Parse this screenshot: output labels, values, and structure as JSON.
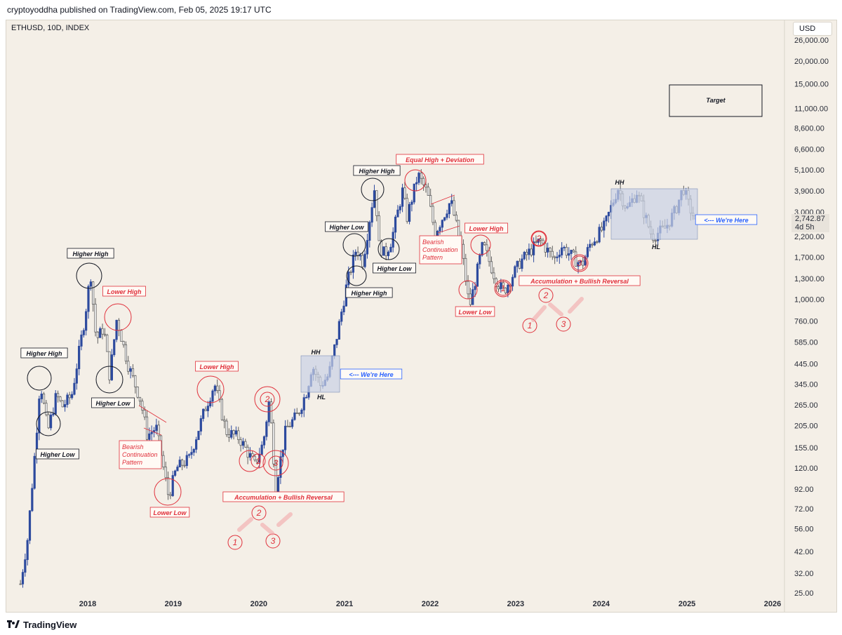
{
  "publisher_line": "cryptoyoddha published on TradingView.com, Feb 05, 2025 19:17 UTC",
  "symbol_title": "ETHUSD, 10D, INDEX",
  "currency_button": "USD",
  "brand": "TradingView",
  "last_price": "2,742.87",
  "countdown": "4d 5h",
  "colors": {
    "background": "#f4efe7",
    "candle_up": "#2d4a9e",
    "candle_down": "#5f5f5f",
    "annotation_red": "#e0303b",
    "annotation_black": "#131722",
    "zone_fill": "#c9d2e6",
    "callout_blue": "#2962ff"
  },
  "chart_data": {
    "type": "candlestick",
    "title": "ETHUSD, 10D, INDEX",
    "y_scale": "log",
    "y_ticks": [
      "26,000.00",
      "20,000.00",
      "15,000.00",
      "11,000.00",
      "8,600.00",
      "6,600.00",
      "5,100.00",
      "3,900.00",
      "3,000.00",
      "2,200.00",
      "1,700.00",
      "1,300.00",
      "1,000.00",
      "760.00",
      "585.00",
      "445.00",
      "345.00",
      "265.00",
      "205.00",
      "155.00",
      "120.00",
      "92.00",
      "72.00",
      "56.00",
      "42.00",
      "32.00",
      "25.00"
    ],
    "x_ticks": [
      "2018",
      "2019",
      "2020",
      "2021",
      "2022",
      "2023",
      "2024",
      "2025",
      "2026"
    ],
    "price_path": [
      {
        "date": "2017-03-20",
        "price": 28
      },
      {
        "date": "2017-04-20",
        "price": 50
      },
      {
        "date": "2017-05-25",
        "price": 170
      },
      {
        "date": "2017-06-12",
        "price": 360
      },
      {
        "date": "2017-07-15",
        "price": 190
      },
      {
        "date": "2017-08-20",
        "price": 300
      },
      {
        "date": "2017-09-15",
        "price": 260
      },
      {
        "date": "2017-10-25",
        "price": 300
      },
      {
        "date": "2017-12-20",
        "price": 800
      },
      {
        "date": "2018-01-13",
        "price": 1400
      },
      {
        "date": "2018-02-06",
        "price": 600
      },
      {
        "date": "2018-03-10",
        "price": 700
      },
      {
        "date": "2018-04-05",
        "price": 380
      },
      {
        "date": "2018-05-05",
        "price": 790
      },
      {
        "date": "2018-06-20",
        "price": 450
      },
      {
        "date": "2018-08-15",
        "price": 280
      },
      {
        "date": "2018-09-12",
        "price": 180
      },
      {
        "date": "2018-10-20",
        "price": 200
      },
      {
        "date": "2018-12-12",
        "price": 84
      },
      {
        "date": "2019-01-15",
        "price": 120
      },
      {
        "date": "2019-03-10",
        "price": 135
      },
      {
        "date": "2019-05-15",
        "price": 250
      },
      {
        "date": "2019-06-26",
        "price": 345
      },
      {
        "date": "2019-08-15",
        "price": 190
      },
      {
        "date": "2019-10-10",
        "price": 175
      },
      {
        "date": "2019-12-15",
        "price": 125
      },
      {
        "date": "2020-01-20",
        "price": 165
      },
      {
        "date": "2020-02-15",
        "price": 285
      },
      {
        "date": "2020-03-13",
        "price": 95
      },
      {
        "date": "2020-04-25",
        "price": 195
      },
      {
        "date": "2020-06-15",
        "price": 235
      },
      {
        "date": "2020-07-25",
        "price": 320
      },
      {
        "date": "2020-08-15",
        "price": 440
      },
      {
        "date": "2020-09-20",
        "price": 340
      },
      {
        "date": "2020-10-25",
        "price": 385
      },
      {
        "date": "2020-11-25",
        "price": 590
      },
      {
        "date": "2021-01-10",
        "price": 1200
      },
      {
        "date": "2021-02-20",
        "price": 1900
      },
      {
        "date": "2021-03-20",
        "price": 1600
      },
      {
        "date": "2021-05-12",
        "price": 4300
      },
      {
        "date": "2021-05-25",
        "price": 2000
      },
      {
        "date": "2021-06-22",
        "price": 1750
      },
      {
        "date": "2021-07-20",
        "price": 2100
      },
      {
        "date": "2021-09-05",
        "price": 3900
      },
      {
        "date": "2021-09-25",
        "price": 2800
      },
      {
        "date": "2021-11-10",
        "price": 4800
      },
      {
        "date": "2021-12-20",
        "price": 3800
      },
      {
        "date": "2022-01-22",
        "price": 2300
      },
      {
        "date": "2022-03-30",
        "price": 3450
      },
      {
        "date": "2022-05-15",
        "price": 1900
      },
      {
        "date": "2022-06-18",
        "price": 900
      },
      {
        "date": "2022-08-14",
        "price": 2000
      },
      {
        "date": "2022-10-10",
        "price": 1270
      },
      {
        "date": "2022-11-10",
        "price": 1100
      },
      {
        "date": "2023-01-20",
        "price": 1600
      },
      {
        "date": "2023-04-15",
        "price": 2100
      },
      {
        "date": "2023-06-15",
        "price": 1650
      },
      {
        "date": "2023-07-15",
        "price": 1950
      },
      {
        "date": "2023-10-10",
        "price": 1530
      },
      {
        "date": "2023-11-15",
        "price": 2000
      },
      {
        "date": "2024-01-15",
        "price": 2500
      },
      {
        "date": "2024-03-12",
        "price": 4050
      },
      {
        "date": "2024-04-20",
        "price": 3100
      },
      {
        "date": "2024-06-01",
        "price": 3850
      },
      {
        "date": "2024-08-05",
        "price": 2200
      },
      {
        "date": "2024-10-01",
        "price": 2450
      },
      {
        "date": "2024-11-15",
        "price": 3100
      },
      {
        "date": "2024-12-16",
        "price": 4100
      },
      {
        "date": "2025-01-10",
        "price": 3200
      },
      {
        "date": "2025-02-05",
        "price": 2742.87
      }
    ],
    "annotations": [
      {
        "text": "Higher High",
        "color": "black"
      },
      {
        "text": "Higher Low",
        "color": "black"
      },
      {
        "text": "Higher High",
        "color": "black"
      },
      {
        "text": "Higher Low",
        "color": "black"
      },
      {
        "text": "Lower High",
        "color": "red"
      },
      {
        "text": "Bearish Continuation Pattern",
        "color": "red"
      },
      {
        "text": "Lower Low",
        "color": "red"
      },
      {
        "text": "Lower High",
        "color": "red"
      },
      {
        "text": "Accumulation + Bullish Reversal",
        "color": "red"
      },
      {
        "text": "HH",
        "color": "black"
      },
      {
        "text": "HL",
        "color": "black"
      },
      {
        "text": "<--- We're Here",
        "color": "blue"
      },
      {
        "text": "Higher High",
        "color": "black"
      },
      {
        "text": "Higher Low",
        "color": "black"
      },
      {
        "text": "Higher High",
        "color": "black"
      },
      {
        "text": "Higher Low",
        "color": "black"
      },
      {
        "text": "Equal High + Deviation",
        "color": "red"
      },
      {
        "text": "Bearish Continuation Pattern",
        "color": "red"
      },
      {
        "text": "Lower High",
        "color": "red"
      },
      {
        "text": "Lower Low",
        "color": "red"
      },
      {
        "text": "Accumulation + Bullish Reversal",
        "color": "red"
      },
      {
        "text": "HH",
        "color": "black"
      },
      {
        "text": "HL",
        "color": "black"
      },
      {
        "text": "<--- We're Here",
        "color": "blue"
      },
      {
        "text": "Target",
        "color": "black"
      }
    ],
    "count_labels": [
      "1",
      "2",
      "3"
    ]
  }
}
